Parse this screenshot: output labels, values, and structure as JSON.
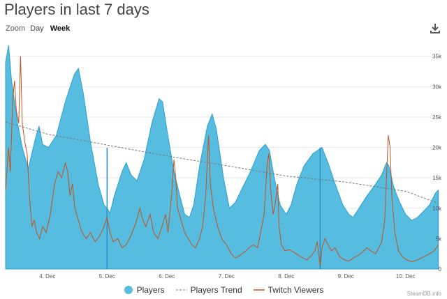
{
  "title": "Players in last 7 days",
  "toolbar": {
    "zoom_label": "Zoom",
    "day_label": "Day",
    "week_label": "Week",
    "download_icon": "download-icon"
  },
  "watermark": "SteamDB.info",
  "colors": {
    "players": "#57bde0",
    "players_stroke": "#2a9fd0",
    "trend": "#777777",
    "twitch": "#c4511c",
    "grid": "#e8e8e8"
  },
  "chart_data": {
    "type": "area",
    "title": "Players in last 7 days",
    "x_range_days": [
      3.3,
      10.6
    ],
    "x_ticks": [
      {
        "x": 4,
        "label": "4. Dec"
      },
      {
        "x": 5,
        "label": "5. Dec"
      },
      {
        "x": 6,
        "label": "6. Dec"
      },
      {
        "x": 7,
        "label": "7. Dec"
      },
      {
        "x": 8,
        "label": "8. Dec"
      },
      {
        "x": 9,
        "label": "9. Dec"
      },
      {
        "x": 10,
        "label": "10. Dec"
      }
    ],
    "y_range": [
      0,
      36000
    ],
    "y_ticks": [
      {
        "y": 0,
        "label": "0"
      },
      {
        "y": 5000,
        "label": "5k"
      },
      {
        "y": 10000,
        "label": "10k"
      },
      {
        "y": 15000,
        "label": "15k"
      },
      {
        "y": 20000,
        "label": "20k"
      },
      {
        "y": 25000,
        "label": "25k"
      },
      {
        "y": 30000,
        "label": "30k"
      },
      {
        "y": 35000,
        "label": "35k"
      }
    ],
    "grid": true,
    "legend_position": "bottom",
    "series": [
      {
        "name": "Players",
        "type": "area",
        "points": [
          [
            3.3,
            34000
          ],
          [
            3.35,
            36800
          ],
          [
            3.4,
            31000
          ],
          [
            3.5,
            24000
          ],
          [
            3.58,
            20000
          ],
          [
            3.68,
            16500
          ],
          [
            3.8,
            21500
          ],
          [
            3.86,
            23500
          ],
          [
            3.92,
            20500
          ],
          [
            4.02,
            20000
          ],
          [
            4.15,
            22000
          ],
          [
            4.3,
            27500
          ],
          [
            4.45,
            32000
          ],
          [
            4.52,
            33000
          ],
          [
            4.6,
            29000
          ],
          [
            4.72,
            21000
          ],
          [
            4.85,
            14000
          ],
          [
            4.95,
            10500
          ],
          [
            5.0,
            10000
          ],
          [
            5.05,
            9200
          ],
          [
            5.12,
            12000
          ],
          [
            5.25,
            16000
          ],
          [
            5.32,
            17500
          ],
          [
            5.4,
            15500
          ],
          [
            5.5,
            14500
          ],
          [
            5.62,
            18000
          ],
          [
            5.75,
            24000
          ],
          [
            5.87,
            28000
          ],
          [
            5.93,
            27500
          ],
          [
            6.0,
            23000
          ],
          [
            6.12,
            16000
          ],
          [
            6.22,
            12000
          ],
          [
            6.3,
            9000
          ],
          [
            6.38,
            8500
          ],
          [
            6.45,
            10500
          ],
          [
            6.55,
            17000
          ],
          [
            6.68,
            23500
          ],
          [
            6.76,
            25500
          ],
          [
            6.83,
            23000
          ],
          [
            6.95,
            15000
          ],
          [
            7.05,
            10000
          ],
          [
            7.15,
            11000
          ],
          [
            7.25,
            13000
          ],
          [
            7.4,
            16000
          ],
          [
            7.55,
            19500
          ],
          [
            7.65,
            20500
          ],
          [
            7.72,
            19500
          ],
          [
            7.8,
            15000
          ],
          [
            7.9,
            10500
          ],
          [
            8.0,
            9000
          ],
          [
            8.08,
            10500
          ],
          [
            8.18,
            14000
          ],
          [
            8.3,
            17000
          ],
          [
            8.45,
            19000
          ],
          [
            8.6,
            20000
          ],
          [
            8.7,
            17500
          ],
          [
            8.82,
            14000
          ],
          [
            8.95,
            10500
          ],
          [
            9.05,
            9000
          ],
          [
            9.12,
            8500
          ],
          [
            9.22,
            10000
          ],
          [
            9.35,
            12000
          ],
          [
            9.5,
            14000
          ],
          [
            9.6,
            15500
          ],
          [
            9.68,
            17500
          ],
          [
            9.72,
            17000
          ],
          [
            9.8,
            13500
          ],
          [
            9.9,
            11000
          ],
          [
            10.0,
            9000
          ],
          [
            10.1,
            8000
          ],
          [
            10.2,
            8500
          ],
          [
            10.3,
            9500
          ],
          [
            10.4,
            10500
          ],
          [
            10.5,
            12500
          ],
          [
            10.55,
            13000
          ]
        ]
      },
      {
        "name": "Players Trend",
        "type": "line-dashed",
        "points": [
          [
            3.3,
            24200
          ],
          [
            4.0,
            22200
          ],
          [
            5.0,
            20400
          ],
          [
            6.0,
            18600
          ],
          [
            7.0,
            17000
          ],
          [
            8.0,
            15300
          ],
          [
            9.0,
            14300
          ],
          [
            10.0,
            12800
          ],
          [
            10.55,
            10800
          ]
        ]
      },
      {
        "name": "Twitch Viewers",
        "type": "line",
        "points": [
          [
            3.3,
            13000
          ],
          [
            3.35,
            20000
          ],
          [
            3.38,
            16000
          ],
          [
            3.42,
            28000
          ],
          [
            3.45,
            31000
          ],
          [
            3.48,
            26000
          ],
          [
            3.52,
            24000
          ],
          [
            3.55,
            35000
          ],
          [
            3.58,
            24000
          ],
          [
            3.62,
            21000
          ],
          [
            3.66,
            19000
          ],
          [
            3.7,
            12000
          ],
          [
            3.74,
            7000
          ],
          [
            3.78,
            8000
          ],
          [
            3.82,
            6000
          ],
          [
            3.87,
            5000
          ],
          [
            3.92,
            7000
          ],
          [
            3.98,
            6000
          ],
          [
            4.05,
            9000
          ],
          [
            4.12,
            14000
          ],
          [
            4.18,
            16000
          ],
          [
            4.24,
            15000
          ],
          [
            4.3,
            17500
          ],
          [
            4.34,
            16000
          ],
          [
            4.38,
            12000
          ],
          [
            4.42,
            14000
          ],
          [
            4.46,
            10000
          ],
          [
            4.52,
            8000
          ],
          [
            4.58,
            6000
          ],
          [
            4.65,
            5000
          ],
          [
            4.72,
            6000
          ],
          [
            4.8,
            4500
          ],
          [
            4.88,
            5500
          ],
          [
            4.95,
            7000
          ],
          [
            5.0,
            8500
          ],
          [
            5.05,
            6000
          ],
          [
            5.1,
            4500
          ],
          [
            5.18,
            5000
          ],
          [
            5.25,
            3500
          ],
          [
            5.32,
            4000
          ],
          [
            5.4,
            5500
          ],
          [
            5.48,
            7500
          ],
          [
            5.55,
            10000
          ],
          [
            5.6,
            8000
          ],
          [
            5.65,
            7000
          ],
          [
            5.72,
            9000
          ],
          [
            5.78,
            6000
          ],
          [
            5.85,
            5000
          ],
          [
            5.92,
            7000
          ],
          [
            5.98,
            9000
          ],
          [
            6.02,
            6000
          ],
          [
            6.08,
            12000
          ],
          [
            6.12,
            18000
          ],
          [
            6.15,
            15000
          ],
          [
            6.18,
            10000
          ],
          [
            6.24,
            8000
          ],
          [
            6.3,
            6000
          ],
          [
            6.36,
            5000
          ],
          [
            6.42,
            4000
          ],
          [
            6.48,
            3500
          ],
          [
            6.55,
            5000
          ],
          [
            6.6,
            7000
          ],
          [
            6.65,
            12000
          ],
          [
            6.7,
            22000
          ],
          [
            6.73,
            14000
          ],
          [
            6.78,
            10000
          ],
          [
            6.85,
            7000
          ],
          [
            6.92,
            5000
          ],
          [
            7.0,
            4000
          ],
          [
            7.08,
            2500
          ],
          [
            7.15,
            1800
          ],
          [
            7.22,
            2200
          ],
          [
            7.3,
            2800
          ],
          [
            7.38,
            3500
          ],
          [
            7.45,
            4000
          ],
          [
            7.52,
            3500
          ],
          [
            7.58,
            6500
          ],
          [
            7.63,
            9000
          ],
          [
            7.68,
            17000
          ],
          [
            7.71,
            19000
          ],
          [
            7.74,
            13000
          ],
          [
            7.78,
            9000
          ],
          [
            7.82,
            11000
          ],
          [
            7.86,
            14000
          ],
          [
            7.88,
            7000
          ],
          [
            7.92,
            4000
          ],
          [
            7.98,
            3000
          ],
          [
            8.05,
            3200
          ],
          [
            8.12,
            2800
          ],
          [
            8.2,
            2300
          ],
          [
            8.28,
            1800
          ],
          [
            8.35,
            1500
          ],
          [
            8.42,
            2200
          ],
          [
            8.48,
            3000
          ],
          [
            8.52,
            4500
          ],
          [
            8.55,
            2000
          ],
          [
            8.57,
            500
          ],
          [
            8.6,
            3500
          ],
          [
            8.65,
            5000
          ],
          [
            8.7,
            4000
          ],
          [
            8.76,
            3000
          ],
          [
            8.82,
            3500
          ],
          [
            8.9,
            2000
          ],
          [
            8.98,
            1500
          ],
          [
            9.05,
            1300
          ],
          [
            9.12,
            1800
          ],
          [
            9.2,
            2200
          ],
          [
            9.28,
            2800
          ],
          [
            9.35,
            3500
          ],
          [
            9.42,
            3000
          ],
          [
            9.5,
            2500
          ],
          [
            9.55,
            3500
          ],
          [
            9.6,
            4500
          ],
          [
            9.65,
            8000
          ],
          [
            9.68,
            15000
          ],
          [
            9.71,
            22000
          ],
          [
            9.74,
            20000
          ],
          [
            9.77,
            12000
          ],
          [
            9.82,
            6000
          ],
          [
            9.88,
            3000
          ],
          [
            9.95,
            2000
          ],
          [
            10.02,
            1500
          ],
          [
            10.1,
            1200
          ],
          [
            10.2,
            1500
          ],
          [
            10.3,
            2000
          ],
          [
            10.4,
            2500
          ],
          [
            10.48,
            3000
          ],
          [
            10.55,
            4000
          ]
        ]
      }
    ],
    "annotations": [
      {
        "x": 5.0,
        "kind": "vertical-line"
      },
      {
        "x": 8.57,
        "kind": "vertical-line"
      }
    ]
  },
  "legend": [
    {
      "name": "Players",
      "marker": "circle"
    },
    {
      "name": "Players Trend",
      "marker": "dash"
    },
    {
      "name": "Twitch Viewers",
      "marker": "line"
    }
  ]
}
